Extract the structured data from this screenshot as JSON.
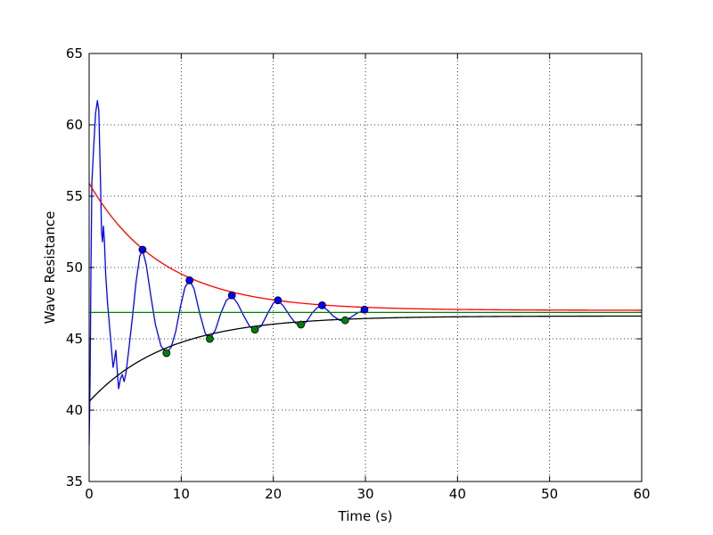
{
  "chart_data": {
    "type": "line",
    "title": "",
    "xlabel": "Time (s)",
    "ylabel": "Wave Resistance",
    "xlim": [
      0,
      60
    ],
    "ylim": [
      35,
      65
    ],
    "xticks": [
      0,
      10,
      20,
      30,
      40,
      50,
      60
    ],
    "yticks": [
      35,
      40,
      45,
      50,
      55,
      60,
      65
    ],
    "grid": true,
    "grid_style": "dotted",
    "series": [
      {
        "color": "#0000ff",
        "points": [
          [
            0.0,
            37.5
          ],
          [
            0.1,
            42.0
          ],
          [
            0.2,
            50.0
          ],
          [
            0.3,
            56.0
          ],
          [
            0.5,
            58.5
          ],
          [
            0.7,
            60.8
          ],
          [
            0.9,
            61.7
          ],
          [
            1.05,
            61.0
          ],
          [
            1.2,
            57.0
          ],
          [
            1.35,
            52.5
          ],
          [
            1.45,
            51.8
          ],
          [
            1.55,
            52.9
          ],
          [
            1.65,
            52.0
          ],
          [
            1.8,
            49.5
          ],
          [
            2.0,
            47.5
          ],
          [
            2.2,
            46.0
          ],
          [
            2.4,
            44.5
          ],
          [
            2.6,
            43.0
          ],
          [
            2.75,
            43.5
          ],
          [
            2.9,
            44.2
          ],
          [
            3.05,
            42.8
          ],
          [
            3.2,
            41.5
          ],
          [
            3.4,
            42.2
          ],
          [
            3.6,
            42.5
          ],
          [
            3.8,
            42.0
          ],
          [
            4.0,
            42.6
          ],
          [
            4.3,
            44.2
          ],
          [
            4.7,
            46.5
          ],
          [
            5.1,
            49.0
          ],
          [
            5.5,
            50.8
          ],
          [
            5.8,
            51.2
          ],
          [
            6.2,
            50.2
          ],
          [
            6.7,
            48.0
          ],
          [
            7.2,
            46.0
          ],
          [
            7.8,
            44.5
          ],
          [
            8.4,
            44.0
          ],
          [
            8.9,
            44.4
          ],
          [
            9.4,
            45.5
          ],
          [
            9.9,
            47.2
          ],
          [
            10.4,
            48.6
          ],
          [
            10.9,
            49.1
          ],
          [
            11.4,
            48.5
          ],
          [
            12.0,
            46.8
          ],
          [
            12.6,
            45.4
          ],
          [
            13.1,
            45.0
          ],
          [
            13.7,
            45.6
          ],
          [
            14.3,
            46.8
          ],
          [
            14.9,
            47.7
          ],
          [
            15.5,
            48.0
          ],
          [
            16.1,
            47.5
          ],
          [
            16.8,
            46.6
          ],
          [
            17.4,
            45.9
          ],
          [
            18.0,
            45.6
          ],
          [
            18.7,
            45.9
          ],
          [
            19.4,
            46.8
          ],
          [
            20.0,
            47.5
          ],
          [
            20.5,
            47.7
          ],
          [
            21.1,
            47.3
          ],
          [
            21.8,
            46.6
          ],
          [
            22.4,
            46.1
          ],
          [
            23.0,
            45.9
          ],
          [
            23.6,
            46.2
          ],
          [
            24.2,
            46.8
          ],
          [
            24.8,
            47.2
          ],
          [
            25.3,
            47.3
          ],
          [
            25.9,
            47.0
          ],
          [
            26.5,
            46.6
          ],
          [
            27.2,
            46.3
          ],
          [
            27.8,
            46.3
          ],
          [
            28.4,
            46.5
          ],
          [
            29.1,
            46.8
          ],
          [
            29.9,
            47.0
          ]
        ]
      },
      {
        "color": "#ff0000",
        "function": "exp_decay",
        "asymptote": 47.0,
        "amplitude": 8.9,
        "tau": 8.0,
        "range": [
          0,
          60
        ]
      },
      {
        "color": "#000000",
        "function": "exp_rise",
        "asymptote": 46.6,
        "amplitude": 6.0,
        "tau": 8.5,
        "range": [
          0,
          60
        ]
      },
      {
        "color": "#008000",
        "function": "constant",
        "value": 46.85,
        "range": [
          0,
          60
        ]
      }
    ],
    "markers": [
      {
        "fill": "#0000ff",
        "points": [
          [
            5.8,
            51.25
          ],
          [
            10.9,
            49.1
          ],
          [
            15.5,
            48.05
          ],
          [
            20.5,
            47.7
          ],
          [
            25.3,
            47.35
          ],
          [
            29.9,
            47.05
          ]
        ]
      },
      {
        "fill": "#008000",
        "points": [
          [
            8.4,
            44.0
          ],
          [
            13.1,
            45.0
          ],
          [
            18.0,
            45.65
          ],
          [
            23.0,
            46.0
          ],
          [
            27.8,
            46.3
          ]
        ]
      }
    ]
  }
}
